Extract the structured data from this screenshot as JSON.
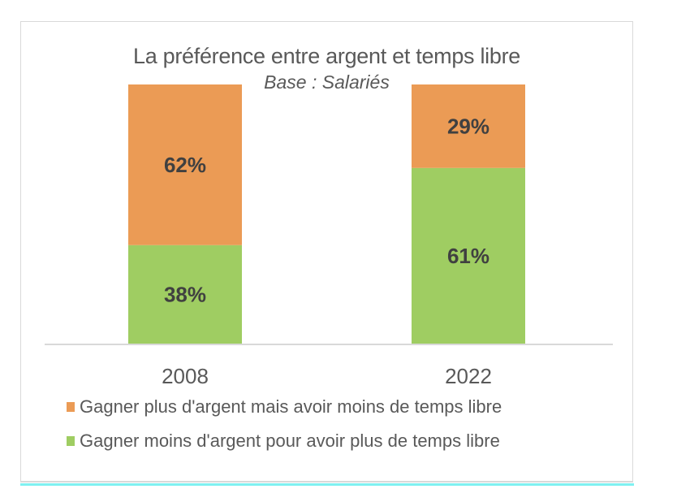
{
  "chart_data": {
    "type": "bar",
    "stacked": true,
    "normalized": true,
    "title": "La préférence entre argent et temps libre",
    "subtitle": "Base : Salariés",
    "xlabel": "",
    "ylabel": "",
    "categories": [
      "2008",
      "2022"
    ],
    "series": [
      {
        "name": "Gagner moins d'argent pour avoir plus de temps libre",
        "color": "#9fcd62",
        "values": [
          38,
          61
        ]
      },
      {
        "name": "Gagner plus d'argent mais avoir moins de temps libre",
        "color": "#eb9b55",
        "values": [
          62,
          29
        ]
      }
    ],
    "legend": {
      "placement": "bottom",
      "entries": [
        {
          "label": "Gagner plus d'argent mais avoir moins de temps libre",
          "color": "#eb9b55"
        },
        {
          "label": "Gagner moins d'argent pour avoir plus de temps libre",
          "color": "#9fcd62"
        }
      ]
    },
    "label_suffix": "%",
    "grid": false
  }
}
